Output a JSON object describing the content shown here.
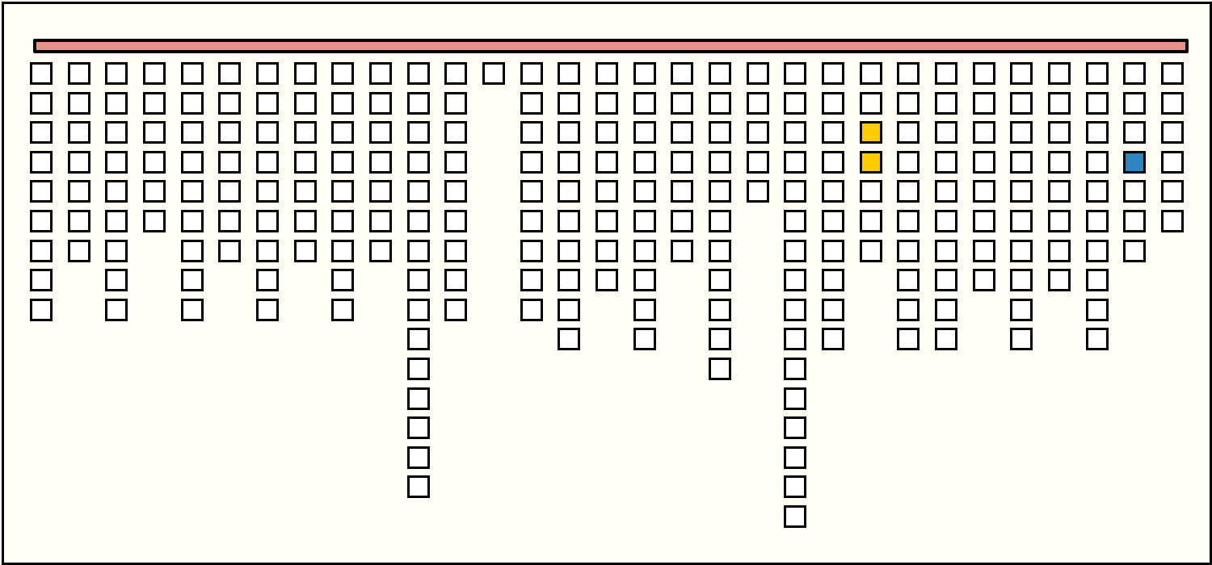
{
  "game": {
    "bar_color": "#E8908A",
    "cell_color": "#FFFFFF",
    "background_color": "#FFFFF5",
    "column_heights": [
      9,
      7,
      9,
      6,
      9,
      7,
      9,
      7,
      9,
      7,
      15,
      9,
      1,
      9,
      10,
      8,
      10,
      7,
      11,
      5,
      16,
      10,
      7,
      10,
      10,
      8,
      10,
      8,
      10,
      7,
      6
    ],
    "highlighted_cells": [
      {
        "column": 23,
        "row": 3,
        "color": "#FFCC00"
      },
      {
        "column": 23,
        "row": 4,
        "color": "#FFCC00"
      },
      {
        "column": 30,
        "row": 4,
        "color": "#2E86C1"
      }
    ]
  }
}
